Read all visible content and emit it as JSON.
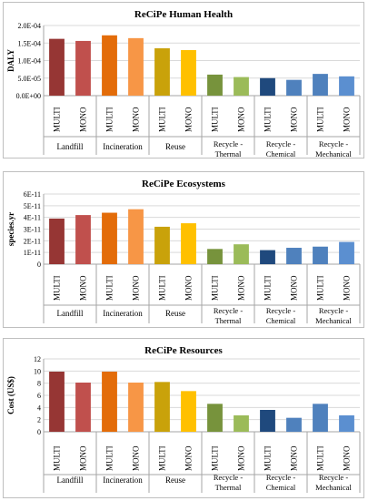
{
  "charts": [
    {
      "chart_data": {
        "type": "bar",
        "title": "ReCiPe Human Health",
        "ylabel": "DALY",
        "ylim": [
          0,
          0.0002
        ],
        "yticks": [
          "0.0E+00",
          "5.0E-05",
          "1.0E-04",
          "1.5E-04",
          "2.0E-04"
        ],
        "categories": [
          "Landfill",
          "Incineration",
          "Reuse",
          "Recycle -\nThermal",
          "Recycle -\nChemical",
          "Recycle -\nMechanical"
        ],
        "series_labels": [
          "MULTI",
          "MONO"
        ],
        "values": [
          [
            0.000162,
            0.000156
          ],
          [
            0.000172,
            0.000164
          ],
          [
            0.000135,
            0.00013
          ],
          [
            6e-05,
            5.3e-05
          ],
          [
            5e-05,
            4.5e-05
          ],
          [
            6.2e-05,
            5.5e-05
          ]
        ],
        "grid": true
      }
    },
    {
      "chart_data": {
        "type": "bar",
        "title": "ReCiPe Ecosystems",
        "ylabel": "species.yr",
        "ylim": [
          0,
          6e-11
        ],
        "yticks": [
          "0",
          "1E-11",
          "2E-11",
          "3E-11",
          "4E-11",
          "5E-11",
          "6E-11"
        ],
        "categories": [
          "Landfill",
          "Incineration",
          "Reuse",
          "Recycle -\nThermal",
          "Recycle -\nChemical",
          "Recycle -\nMechanical"
        ],
        "series_labels": [
          "MULTI",
          "MONO"
        ],
        "values": [
          [
            3.9e-11,
            4.2e-11
          ],
          [
            4.4e-11,
            4.7e-11
          ],
          [
            3.2e-11,
            3.5e-11
          ],
          [
            1.3e-11,
            1.7e-11
          ],
          [
            1.2e-11,
            1.4e-11
          ],
          [
            1.5e-11,
            1.9e-11
          ]
        ],
        "grid": true
      }
    },
    {
      "chart_data": {
        "type": "bar",
        "title": "ReCiPe Resources",
        "ylabel": "Cost (US$)",
        "ylim": [
          0,
          12
        ],
        "yticks": [
          "0",
          "2",
          "4",
          "6",
          "8",
          "10",
          "12"
        ],
        "categories": [
          "Landfill",
          "Incineration",
          "Reuse",
          "Recycle -\nThermal",
          "Recycle -\nChemical",
          "Recycle -\nMechanical"
        ],
        "series_labels": [
          "MULTI",
          "MONO"
        ],
        "values": [
          [
            9.9,
            8.1
          ],
          [
            9.9,
            8.1
          ],
          [
            8.2,
            6.7
          ],
          [
            4.6,
            2.7
          ],
          [
            3.6,
            2.3
          ],
          [
            4.6,
            2.7
          ]
        ],
        "grid": true
      }
    }
  ],
  "colors": [
    [
      "#963634",
      "#c0504d"
    ],
    [
      "#e36c09",
      "#f79646"
    ],
    [
      "#c9a20a",
      "#ffc000"
    ],
    [
      "#77933c",
      "#9bbb59"
    ],
    [
      "#1f497d",
      "#4f81bd"
    ],
    [
      "#4f81bd",
      "#5b8fd0"
    ]
  ]
}
